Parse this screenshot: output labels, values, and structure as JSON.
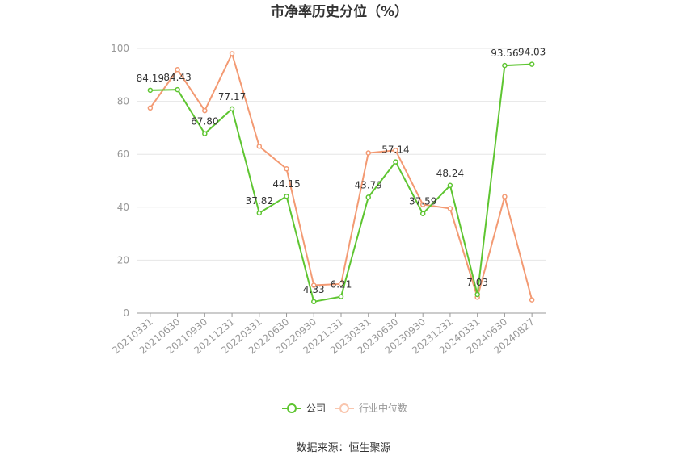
{
  "chart_data": {
    "type": "line",
    "title": "市净率历史分位（%）",
    "categories": [
      "20210331",
      "20210630",
      "20210930",
      "20211231",
      "20220331",
      "20220630",
      "20220930",
      "20221231",
      "20230331",
      "20230630",
      "20230930",
      "20231231",
      "20240331",
      "20240630",
      "20240827"
    ],
    "ylim": [
      0,
      100
    ],
    "yticks": [
      0,
      20,
      40,
      60,
      80,
      100
    ],
    "grid": true,
    "legend_position": "bottom-center",
    "series": [
      {
        "name": "公司",
        "color": "#5ec531",
        "values": [
          84.19,
          84.43,
          67.8,
          77.17,
          37.82,
          44.15,
          4.33,
          6.21,
          43.79,
          57.14,
          37.59,
          48.24,
          7.03,
          93.56,
          94.03
        ],
        "labels": [
          "84.19",
          "84.43",
          "67.80",
          "77.17",
          "37.82",
          "44.15",
          "4.33",
          "6.21",
          "43.79",
          "57.14",
          "37.59",
          "48.24",
          "7.03",
          "93.56",
          "94.03"
        ]
      },
      {
        "name": "行业中位数",
        "color": "#f39a73",
        "values": [
          77.5,
          92.0,
          76.5,
          98.0,
          63.0,
          54.5,
          10.5,
          11.0,
          60.5,
          61.5,
          41.0,
          39.5,
          6.0,
          44.0,
          5.0
        ]
      }
    ],
    "source": "数据来源：恒生聚源"
  }
}
